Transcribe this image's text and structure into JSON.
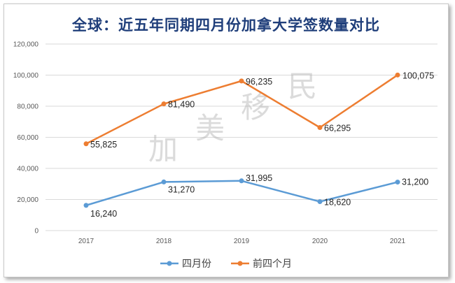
{
  "title": "全球：近五年同期四月份加拿大学签数量对比",
  "watermark": [
    "加",
    "美",
    "移",
    "民"
  ],
  "chart_data": {
    "type": "line",
    "title": "全球：近五年同期四月份加拿大学签数量对比",
    "xlabel": "",
    "ylabel": "",
    "x": [
      "2017",
      "2018",
      "2019",
      "2020",
      "2021"
    ],
    "ylim": [
      0,
      120000
    ],
    "yticks": [
      0,
      20000,
      40000,
      60000,
      80000,
      100000,
      120000
    ],
    "ytick_labels": [
      "0",
      "20,000",
      "40,000",
      "60,000",
      "80,000",
      "100,000",
      "120,000"
    ],
    "grid": true,
    "legend": "bottom",
    "series": [
      {
        "name": "四月份",
        "color": "#5b9bd5",
        "values": [
          16240,
          31270,
          31995,
          18620,
          31200
        ],
        "labels": [
          "16,240",
          "31,270",
          "31,995",
          "18,620",
          "31,200"
        ]
      },
      {
        "name": "前四个月",
        "color": "#ed7d31",
        "values": [
          55825,
          81490,
          96235,
          66295,
          100075
        ],
        "labels": [
          "55,825",
          "81,490",
          "96,235",
          "66,295",
          "100,075"
        ]
      }
    ]
  }
}
